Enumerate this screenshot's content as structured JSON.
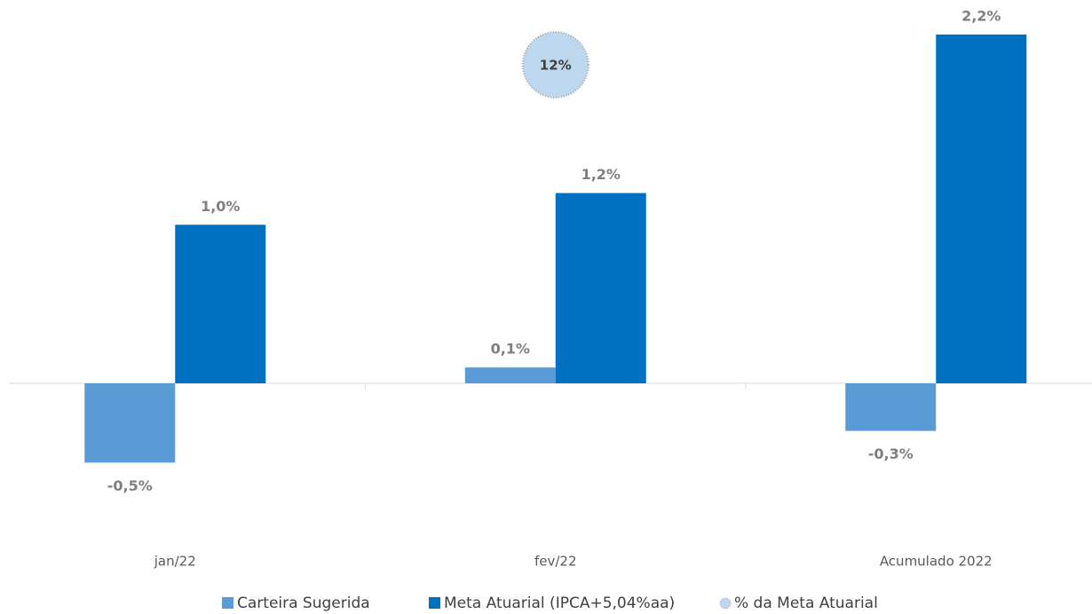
{
  "chart_data": {
    "type": "bar",
    "categories": [
      "jan/22",
      "fev/22",
      "Acumulado 2022"
    ],
    "series": [
      {
        "name": "Carteira Sugerida",
        "color": "#5b9bd5",
        "values": [
          -0.5,
          0.1,
          -0.3
        ],
        "value_labels": [
          "-0,5%",
          "0,1%",
          "-0,3%"
        ]
      },
      {
        "name": "Meta Atuarial (IPCA+5,04%aa)",
        "color": "#0070c0",
        "values": [
          1.0,
          1.2,
          2.2
        ],
        "value_labels": [
          "1,0%",
          "1,2%",
          "2,2%"
        ]
      },
      {
        "name": "% da Meta Atuarial",
        "color": "#bdd7ee",
        "type": "bubble",
        "values": [
          null,
          12,
          null
        ],
        "value_labels": [
          null,
          "12%",
          null
        ]
      }
    ],
    "ylim": [
      -0.8,
      2.3
    ]
  }
}
